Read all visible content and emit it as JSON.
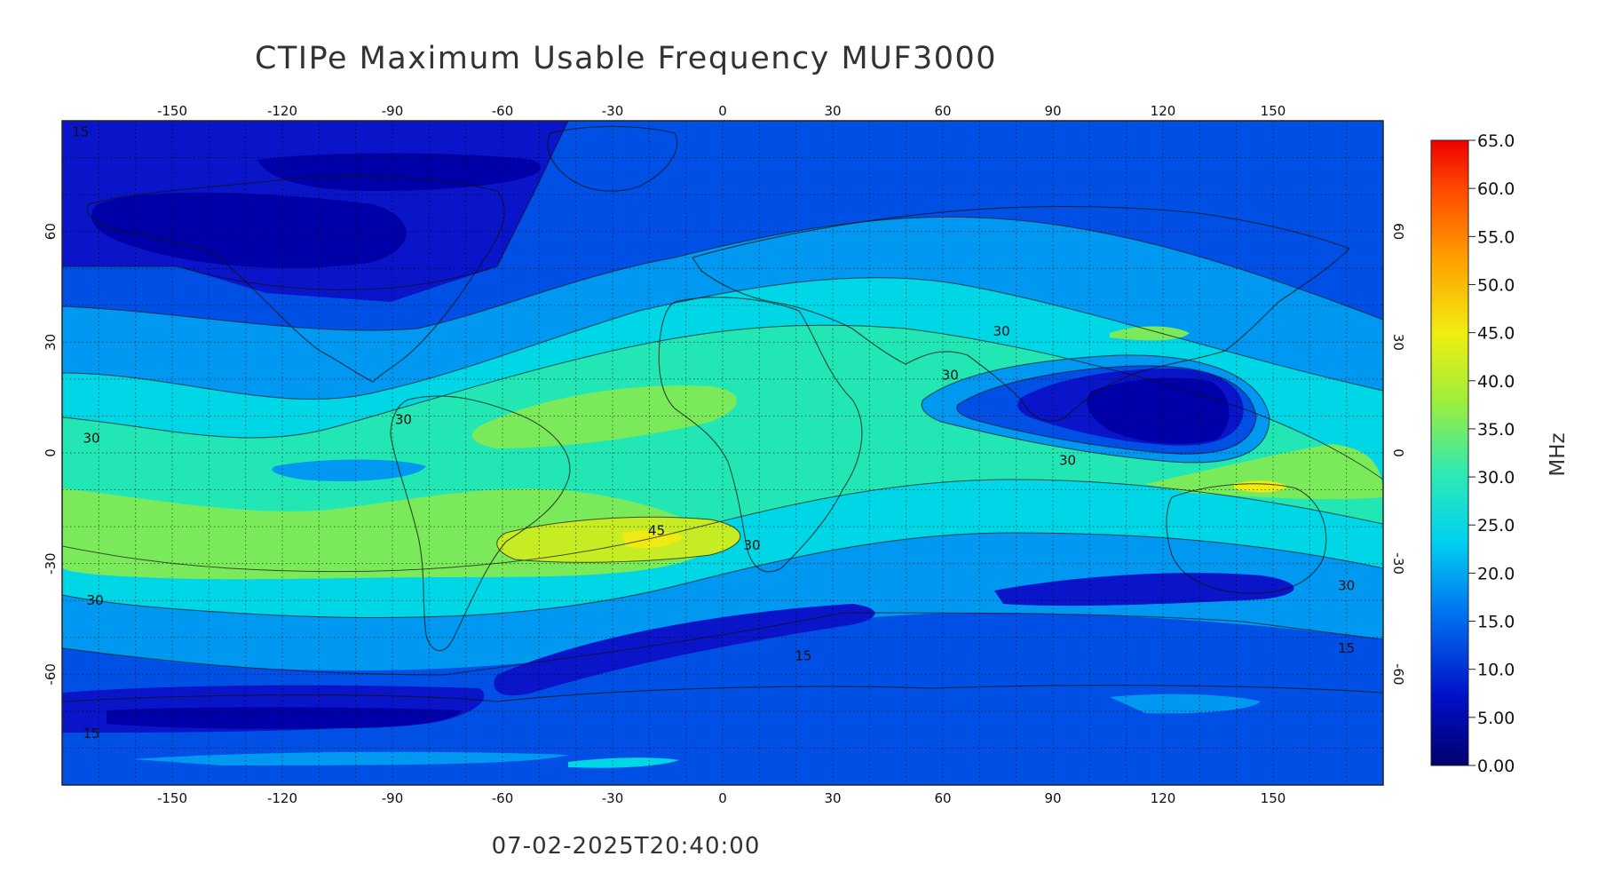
{
  "title": "CTIPe Maximum Usable Frequency MUF3000",
  "timestamp": "07-02-2025T20:40:00",
  "colorbar": {
    "unit": "MHz",
    "min": 0,
    "max": 65,
    "tick_labels": [
      "65.0",
      "60.0",
      "55.0",
      "50.0",
      "45.0",
      "40.0",
      "35.0",
      "30.0",
      "25.0",
      "20.0",
      "15.0",
      "10.0",
      "5.00",
      "0.00"
    ],
    "tick_values": [
      65,
      60,
      55,
      50,
      45,
      40,
      35,
      30,
      25,
      20,
      15,
      10,
      5,
      0
    ]
  },
  "map": {
    "projection": "cylindrical",
    "lon_range": [
      -180,
      180
    ],
    "lat_range": [
      -90,
      90
    ],
    "grid": true,
    "lon_ticks": [
      -150,
      -120,
      -90,
      -60,
      -30,
      0,
      30,
      60,
      90,
      120,
      150
    ],
    "lon_tick_labels": [
      "-150",
      "-120",
      "-90",
      "-60",
      "-30",
      "0",
      "30",
      "60",
      "90",
      "120",
      "150"
    ],
    "lat_ticks": [
      60,
      30,
      0,
      -30,
      -60
    ],
    "lat_tick_labels": [
      "60",
      "30",
      "0",
      "-30",
      "-60"
    ],
    "contour_labels": [
      {
        "text": "15",
        "lon": -175,
        "lat": 87
      },
      {
        "text": "30",
        "lon": 76,
        "lat": 33
      },
      {
        "text": "30",
        "lon": 62,
        "lat": 21
      },
      {
        "text": "30",
        "lon": -172,
        "lat": 4
      },
      {
        "text": "30",
        "lon": -87,
        "lat": 9
      },
      {
        "text": "45",
        "lon": -18,
        "lat": -21
      },
      {
        "text": "30",
        "lon": 8,
        "lat": -25
      },
      {
        "text": "30",
        "lon": -171,
        "lat": -40
      },
      {
        "text": "30",
        "lon": 94,
        "lat": -2
      },
      {
        "text": "15",
        "lon": 22,
        "lat": -55
      },
      {
        "text": "15",
        "lon": -172,
        "lat": -76
      },
      {
        "text": "30",
        "lon": 170,
        "lat": -36
      },
      {
        "text": "15",
        "lon": 170,
        "lat": -53
      }
    ]
  },
  "colors": {
    "c0": "#00006e",
    "c5": "#0000a8",
    "c10": "#0a14c8",
    "c15": "#0050e6",
    "c20": "#0098f0",
    "c25": "#00d7e6",
    "c30": "#22e7b4",
    "c35": "#7bea5a",
    "c40": "#c6ec24",
    "c45": "#f0ea14"
  }
}
